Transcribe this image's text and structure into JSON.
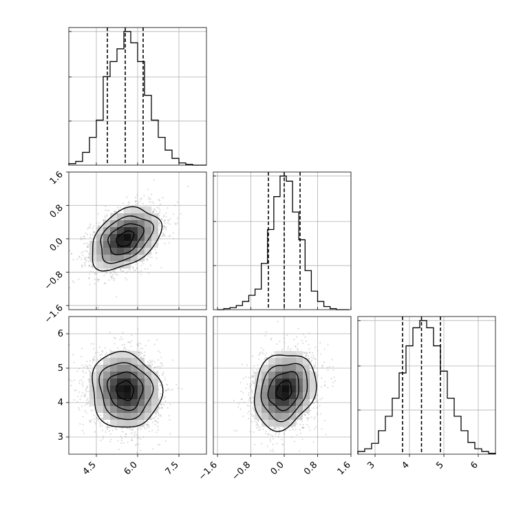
{
  "chart_data": {
    "type": "corner",
    "title": "",
    "parameters": [
      {
        "mean": 5.55,
        "std": 0.63,
        "range": [
          3.5,
          8.5
        ],
        "ticks": [
          4.5,
          6.0,
          7.5
        ],
        "tick_labels": [
          "4.5",
          "6.0",
          "7.5"
        ],
        "quantiles": [
          4.9,
          5.55,
          6.2
        ]
      },
      {
        "mean": 0.0,
        "std": 0.37,
        "range": [
          -1.7,
          1.6
        ],
        "ticks": [
          -1.6,
          -0.8,
          0.0,
          0.8,
          1.6
        ],
        "tick_labels": [
          "−1.6",
          "−0.8",
          "0.0",
          "0.8",
          "1.6"
        ],
        "quantiles": [
          -0.38,
          0.0,
          0.38
        ]
      },
      {
        "mean": 4.35,
        "std": 0.55,
        "range": [
          2.5,
          6.5
        ],
        "ticks": [
          3,
          4,
          5,
          6
        ],
        "tick_labels": [
          "3",
          "4",
          "5",
          "6"
        ],
        "quantiles": [
          3.8,
          4.35,
          4.9
        ]
      }
    ],
    "histograms": [
      {
        "param": 0,
        "bins": [
          3.5,
          3.75,
          4.0,
          4.25,
          4.5,
          4.75,
          5.0,
          5.25,
          5.5,
          5.75,
          6.0,
          6.25,
          6.5,
          6.75,
          7.0,
          7.25,
          7.5,
          7.75,
          8.0,
          8.25,
          8.5
        ],
        "counts": [
          2,
          5,
          17,
          37,
          60,
          118,
          138,
          155,
          178,
          163,
          138,
          93,
          60,
          37,
          20,
          9,
          3,
          1,
          0,
          0
        ]
      },
      {
        "param": 1,
        "bins": [
          -1.6,
          -1.45,
          -1.3,
          -1.15,
          -1.0,
          -0.85,
          -0.7,
          -0.55,
          -0.4,
          -0.25,
          -0.1,
          0.05,
          0.2,
          0.35,
          0.5,
          0.65,
          0.8,
          0.95,
          1.1,
          1.25,
          1.4,
          1.55
        ],
        "counts": [
          0,
          1,
          2,
          4,
          8,
          14,
          20,
          45,
          78,
          110,
          130,
          125,
          95,
          68,
          38,
          18,
          8,
          3,
          1,
          0,
          0
        ]
      },
      {
        "param": 2,
        "bins": [
          2.5,
          2.7,
          2.9,
          3.1,
          3.3,
          3.5,
          3.7,
          3.9,
          4.1,
          4.3,
          4.5,
          4.7,
          4.9,
          5.1,
          5.3,
          5.5,
          5.7,
          5.9,
          6.1,
          6.3,
          6.5
        ],
        "counts": [
          3,
          6,
          12,
          26,
          42,
          62,
          90,
          120,
          140,
          148,
          140,
          120,
          92,
          62,
          42,
          26,
          13,
          6,
          3,
          1
        ]
      }
    ],
    "pairs": [
      {
        "x": 0,
        "y": 1,
        "center": [
          5.55,
          0.0
        ],
        "correlation": 0.38
      },
      {
        "x": 0,
        "y": 2,
        "center": [
          5.55,
          4.35
        ],
        "correlation": -0.08
      },
      {
        "x": 1,
        "y": 2,
        "center": [
          0.0,
          4.35
        ],
        "correlation": 0.18
      }
    ],
    "contour_levels_sigma": [
      0.5,
      1.0,
      1.5,
      2.0
    ],
    "samples_per_panel": 2600,
    "grid": true,
    "colors": {
      "line": "#000000",
      "samples": "#9a9a9a",
      "grid": "#b0b0b0",
      "density_max": "#111111"
    }
  }
}
